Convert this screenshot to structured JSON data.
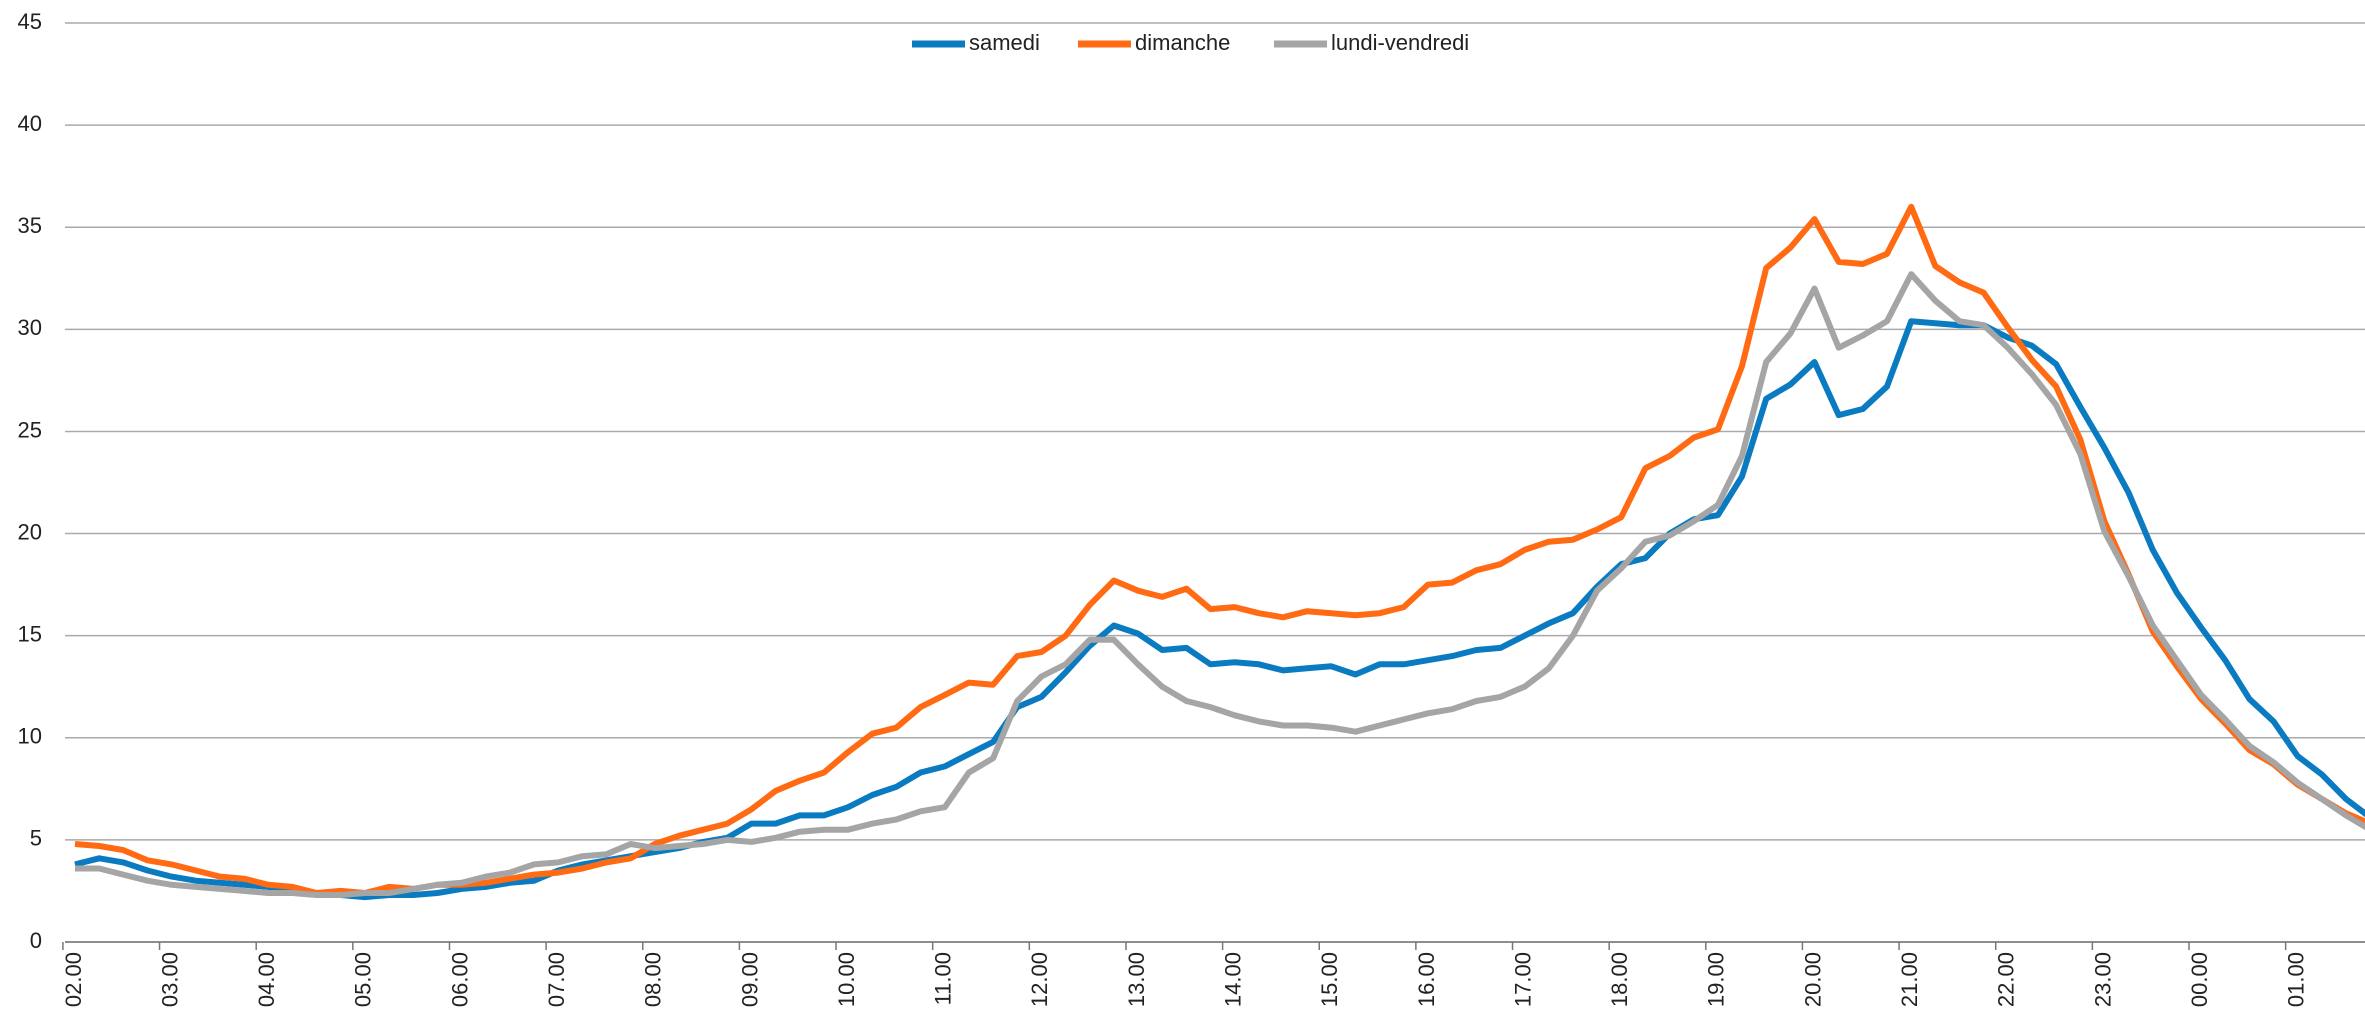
{
  "chart_data": {
    "type": "line",
    "categories": [
      "02.00",
      null,
      null,
      null,
      "03.00",
      null,
      null,
      null,
      "04.00",
      null,
      null,
      null,
      "05.00",
      null,
      null,
      null,
      "06.00",
      null,
      null,
      null,
      "07.00",
      null,
      null,
      null,
      "08.00",
      null,
      null,
      null,
      "09.00",
      null,
      null,
      null,
      "10.00",
      null,
      null,
      null,
      "11.00",
      null,
      null,
      null,
      "12.00",
      null,
      null,
      null,
      "13.00",
      null,
      null,
      null,
      "14.00",
      null,
      null,
      null,
      "15.00",
      null,
      null,
      null,
      "16.00",
      null,
      null,
      null,
      "17.00",
      null,
      null,
      null,
      "18.00",
      null,
      null,
      null,
      "19.00",
      null,
      null,
      null,
      "20.00",
      null,
      null,
      null,
      "21.00",
      null,
      null,
      null,
      "22.00",
      null,
      null,
      null,
      "23.00",
      null,
      null,
      null,
      "00.00",
      null,
      null,
      null,
      "01.00",
      null,
      null,
      null
    ],
    "series": [
      {
        "name": "samedi",
        "color": "#0a7bc1",
        "values": [
          3.8,
          4.1,
          3.9,
          3.5,
          3.2,
          3.0,
          2.9,
          2.8,
          2.7,
          2.5,
          2.4,
          2.3,
          2.2,
          2.3,
          2.3,
          2.4,
          2.6,
          2.7,
          2.9,
          3.0,
          3.5,
          3.8,
          4.0,
          4.2,
          4.4,
          4.6,
          4.9,
          5.1,
          5.8,
          5.8,
          6.2,
          6.2,
          6.6,
          7.2,
          7.6,
          8.3,
          8.6,
          9.2,
          9.8,
          11.5,
          12.0,
          13.2,
          14.5,
          15.5,
          15.1,
          14.3,
          14.4,
          13.6,
          13.7,
          13.6,
          13.3,
          13.4,
          13.5,
          13.1,
          13.6,
          13.6,
          13.8,
          14.0,
          14.3,
          14.4,
          15.0,
          15.6,
          16.1,
          17.4,
          18.5,
          18.8,
          20.0,
          20.7,
          20.9,
          22.8,
          26.6,
          27.3,
          28.4,
          25.8,
          26.1,
          27.2,
          30.4,
          30.3,
          30.2,
          30.2,
          29.6,
          29.2,
          28.3,
          26.2,
          24.2,
          22.0,
          19.2,
          17.1,
          15.4,
          13.8,
          11.9,
          10.8,
          9.1,
          8.2,
          7.0,
          6.1
        ]
      },
      {
        "name": "dimanche",
        "color": "#ff6a13",
        "values": [
          4.8,
          4.7,
          4.5,
          4.0,
          3.8,
          3.5,
          3.2,
          3.1,
          2.8,
          2.7,
          2.4,
          2.5,
          2.4,
          2.7,
          2.6,
          2.8,
          2.8,
          2.9,
          3.1,
          3.3,
          3.4,
          3.6,
          3.9,
          4.1,
          4.8,
          5.2,
          5.5,
          5.8,
          6.5,
          7.4,
          7.9,
          8.3,
          9.3,
          10.2,
          10.5,
          11.5,
          12.1,
          12.7,
          12.6,
          14.0,
          14.2,
          15.0,
          16.5,
          17.7,
          17.2,
          16.9,
          17.3,
          16.3,
          16.4,
          16.1,
          15.9,
          16.2,
          16.1,
          16.0,
          16.1,
          16.4,
          17.5,
          17.6,
          18.2,
          18.5,
          19.2,
          19.6,
          19.7,
          20.2,
          20.8,
          23.2,
          23.8,
          24.7,
          25.1,
          28.2,
          33.0,
          34.0,
          35.4,
          33.3,
          33.2,
          33.7,
          36.0,
          33.1,
          32.3,
          31.8,
          30.1,
          28.5,
          27.2,
          24.6,
          20.6,
          18.0,
          15.2,
          13.5,
          11.9,
          10.7,
          9.4,
          8.7,
          7.7,
          7.0,
          6.3,
          5.8
        ]
      },
      {
        "name": "lundi-vendredi",
        "color": "#a5a5a5",
        "values": [
          3.6,
          3.6,
          3.3,
          3.0,
          2.8,
          2.7,
          2.6,
          2.5,
          2.4,
          2.4,
          2.3,
          2.3,
          2.4,
          2.4,
          2.6,
          2.8,
          2.9,
          3.2,
          3.4,
          3.8,
          3.9,
          4.2,
          4.3,
          4.8,
          4.6,
          4.7,
          4.8,
          5.0,
          4.9,
          5.1,
          5.4,
          5.5,
          5.5,
          5.8,
          6.0,
          6.4,
          6.6,
          8.3,
          9.0,
          11.8,
          13.0,
          13.6,
          14.8,
          14.8,
          13.6,
          12.5,
          11.8,
          11.5,
          11.1,
          10.8,
          10.6,
          10.6,
          10.5,
          10.3,
          10.6,
          10.9,
          11.2,
          11.4,
          11.8,
          12.0,
          12.5,
          13.4,
          15.0,
          17.2,
          18.3,
          19.6,
          19.9,
          20.6,
          21.4,
          23.8,
          28.4,
          29.8,
          32.0,
          29.1,
          29.7,
          30.4,
          32.7,
          31.4,
          30.4,
          30.2,
          29.1,
          27.8,
          26.3,
          23.9,
          20.1,
          17.9,
          15.5,
          13.8,
          12.1,
          10.9,
          9.6,
          8.8,
          7.8,
          7.0,
          6.2,
          5.5
        ]
      }
    ],
    "ylim": [
      0,
      45
    ],
    "yticks": [
      0,
      5,
      10,
      15,
      20,
      25,
      30,
      35,
      40,
      45
    ],
    "grid": true,
    "legend": "top"
  }
}
